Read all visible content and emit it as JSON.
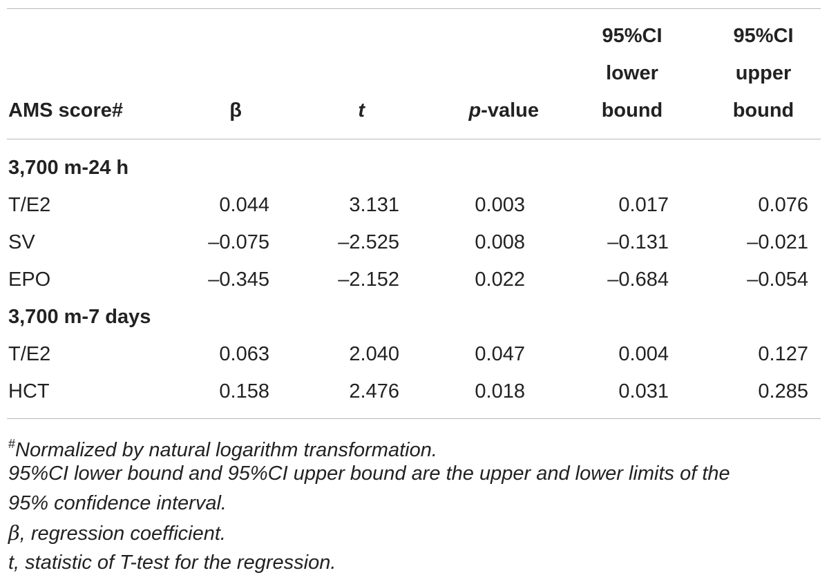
{
  "table": {
    "headers": {
      "label": "AMS score#",
      "beta": "β",
      "t": "t",
      "p_italic": "p",
      "p_rest": "-value",
      "lower": [
        "95%CI",
        "lower",
        "bound"
      ],
      "upper": [
        "95%CI",
        "upper",
        "bound"
      ]
    },
    "groups": [
      {
        "title": "3,700 m-24 h",
        "rows": [
          {
            "label": "T/E2",
            "beta": "0.044",
            "t": "3.131",
            "p": "0.003",
            "lower": "0.017",
            "upper": "0.076"
          },
          {
            "label": "SV",
            "beta": "–0.075",
            "t": "–2.525",
            "p": "0.008",
            "lower": "–0.131",
            "upper": "–0.021"
          },
          {
            "label": "EPO",
            "beta": "–0.345",
            "t": "–2.152",
            "p": "0.022",
            "lower": "–0.684",
            "upper": "–0.054"
          }
        ]
      },
      {
        "title": "3,700 m-7 days",
        "rows": [
          {
            "label": "T/E2",
            "beta": "0.063",
            "t": "2.040",
            "p": "0.047",
            "lower": "0.004",
            "upper": "0.127"
          },
          {
            "label": "HCT",
            "beta": "0.158",
            "t": "2.476",
            "p": "0.018",
            "lower": "0.031",
            "upper": "0.285"
          }
        ]
      }
    ]
  },
  "footnotes": {
    "note1_mark": "#",
    "note1_text": "Normalized by natural logarithm transformation.",
    "note2_line1": "95%CI lower bound and 95%CI upper bound are the upper and lower limits of the",
    "note2_line2": "95% confidence interval.",
    "note3_symbol": "β",
    "note3_text": ", regression coefficient.",
    "note4_text": "t, statistic of T-test for the regression."
  }
}
